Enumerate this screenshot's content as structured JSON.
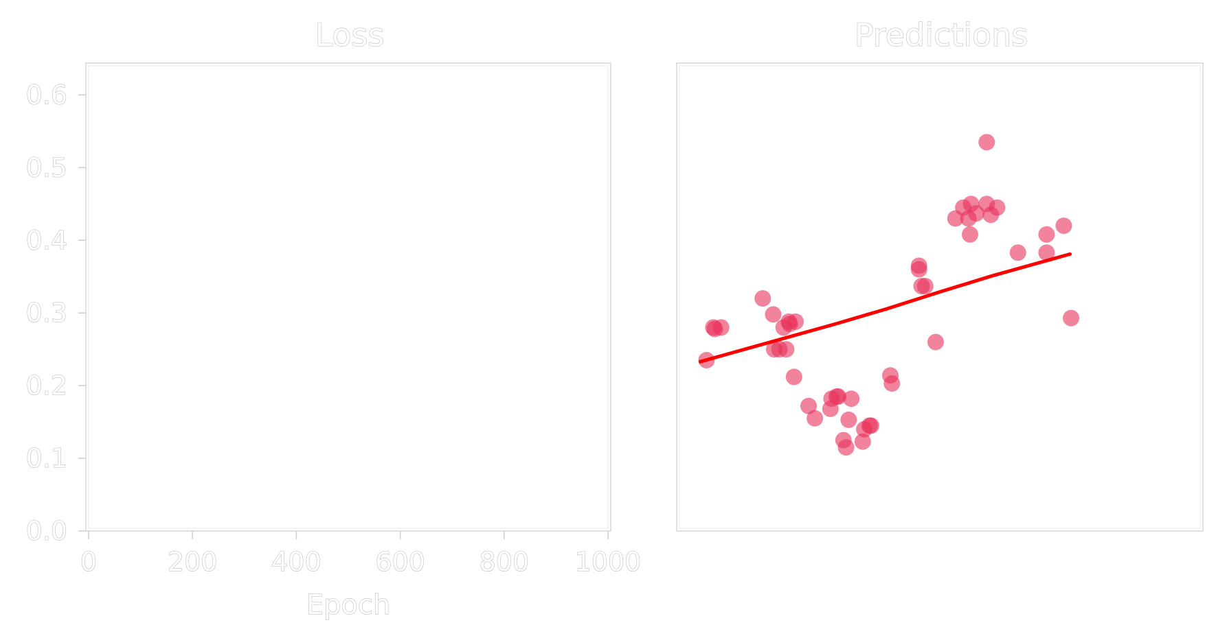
{
  "chart_data": [
    {
      "type": "line",
      "title": "Loss",
      "xlabel": "Epoch",
      "ylabel": "",
      "xlim": [
        0,
        1000
      ],
      "ylim": [
        0,
        0.64
      ],
      "xticks": [
        0,
        200,
        400,
        600,
        800,
        1000
      ],
      "xtick_labels": [
        "0",
        "200",
        "400",
        "600",
        "800",
        "1000"
      ],
      "yticks": [
        0.0,
        0.1,
        0.2,
        0.3,
        0.4,
        0.5,
        0.6
      ],
      "ytick_labels": [
        "0.0",
        "0.1",
        "0.2",
        "0.3",
        "0.4",
        "0.5",
        "0.6"
      ],
      "series": [],
      "grid": false
    },
    {
      "type": "scatter",
      "title": "Predictions",
      "xlabel": "",
      "ylabel": "",
      "xlim": [
        0,
        10
      ],
      "ylim": [
        0,
        0.64
      ],
      "axis_ticks": false,
      "colors": {
        "points": "#e8315a",
        "fit": "#ff0000"
      },
      "points": [
        [
          0.52,
          0.235
        ],
        [
          0.65,
          0.28
        ],
        [
          0.68,
          0.278
        ],
        [
          0.8,
          0.28
        ],
        [
          1.6,
          0.32
        ],
        [
          1.8,
          0.298
        ],
        [
          1.82,
          0.25
        ],
        [
          1.92,
          0.25
        ],
        [
          2.0,
          0.28
        ],
        [
          2.05,
          0.25
        ],
        [
          2.1,
          0.288
        ],
        [
          2.12,
          0.285
        ],
        [
          2.23,
          0.288
        ],
        [
          2.2,
          0.212
        ],
        [
          2.48,
          0.172
        ],
        [
          2.6,
          0.155
        ],
        [
          2.9,
          0.168
        ],
        [
          2.92,
          0.182
        ],
        [
          3.02,
          0.185
        ],
        [
          3.05,
          0.185
        ],
        [
          3.15,
          0.125
        ],
        [
          3.2,
          0.115
        ],
        [
          3.25,
          0.153
        ],
        [
          3.3,
          0.182
        ],
        [
          3.52,
          0.123
        ],
        [
          3.55,
          0.14
        ],
        [
          3.65,
          0.145
        ],
        [
          3.68,
          0.145
        ],
        [
          4.05,
          0.214
        ],
        [
          4.08,
          0.203
        ],
        [
          4.6,
          0.365
        ],
        [
          4.6,
          0.36
        ],
        [
          4.65,
          0.337
        ],
        [
          4.72,
          0.337
        ],
        [
          4.92,
          0.26
        ],
        [
          5.3,
          0.43
        ],
        [
          5.45,
          0.445
        ],
        [
          5.55,
          0.43
        ],
        [
          5.58,
          0.408
        ],
        [
          5.6,
          0.45
        ],
        [
          5.7,
          0.437
        ],
        [
          5.9,
          0.45
        ],
        [
          5.9,
          0.535
        ],
        [
          5.98,
          0.435
        ],
        [
          6.1,
          0.445
        ],
        [
          6.5,
          0.383
        ],
        [
          7.05,
          0.408
        ],
        [
          7.05,
          0.383
        ],
        [
          7.38,
          0.42
        ],
        [
          7.52,
          0.293
        ]
      ],
      "fit": {
        "x": [
          0.4,
          1.0,
          2.0,
          3.0,
          4.0,
          5.0,
          6.0,
          7.0,
          7.5
        ],
        "y": [
          0.233,
          0.245,
          0.265,
          0.285,
          0.306,
          0.329,
          0.351,
          0.371,
          0.381
        ]
      }
    }
  ]
}
